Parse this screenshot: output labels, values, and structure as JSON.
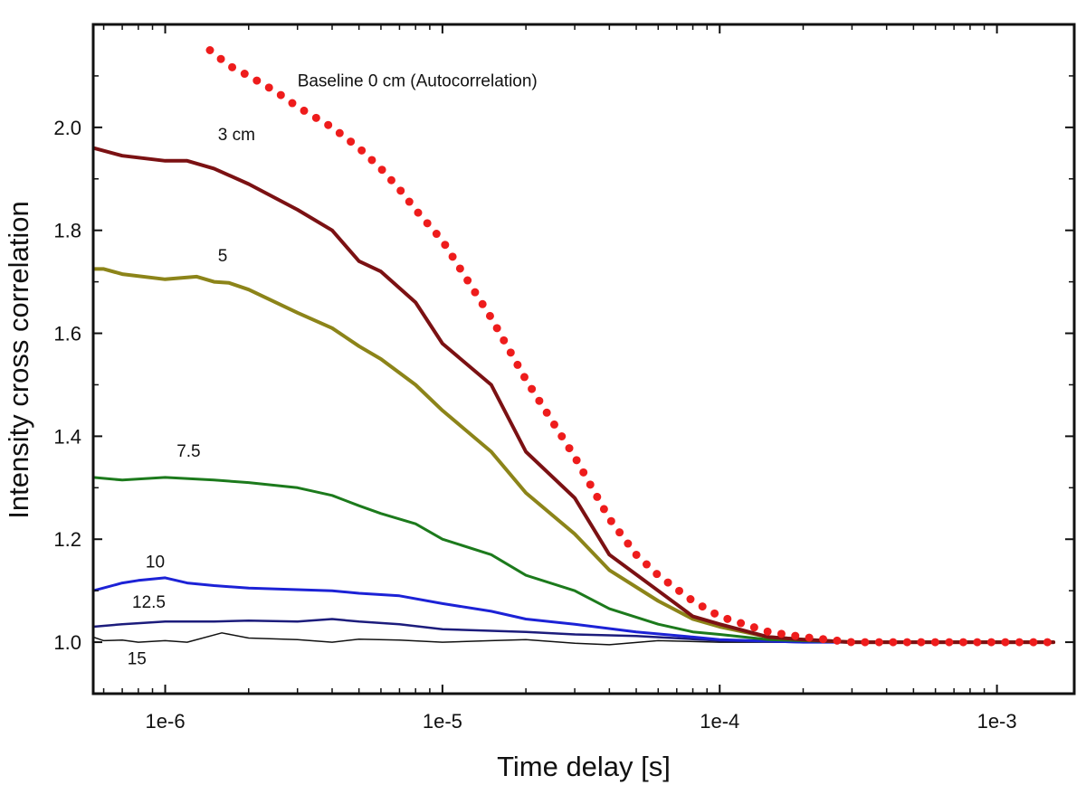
{
  "chart_data": {
    "type": "line",
    "xlabel": "Time delay [s]",
    "ylabel": "Intensity cross correlation",
    "x_scale": "log",
    "xlim": [
      5.5e-07,
      0.0019
    ],
    "ylim": [
      0.9,
      2.2
    ],
    "x_ticks": [
      {
        "value": 1e-06,
        "label": "1e-6"
      },
      {
        "value": 1e-05,
        "label": "1e-5"
      },
      {
        "value": 0.0001,
        "label": "1e-4"
      },
      {
        "value": 0.001,
        "label": "1e-3"
      }
    ],
    "y_ticks": [
      {
        "value": 1.0,
        "label": "1.0"
      },
      {
        "value": 1.2,
        "label": "1.2"
      },
      {
        "value": 1.4,
        "label": "1.4"
      },
      {
        "value": 1.6,
        "label": "1.6"
      },
      {
        "value": 1.8,
        "label": "1.8"
      },
      {
        "value": 2.0,
        "label": "2.0"
      }
    ],
    "grid": false,
    "legend": "none",
    "series": [
      {
        "name": "Baseline 0 cm (Autocorrelation)",
        "color": "#ee1c1c",
        "style": "dotted",
        "label_pos": [
          3e-06,
          2.08
        ],
        "points": [
          [
            1.45e-06,
            2.15
          ],
          [
            1.7e-06,
            2.12
          ],
          [
            2e-06,
            2.1
          ],
          [
            2.5e-06,
            2.07
          ],
          [
            3e-06,
            2.04
          ],
          [
            4e-06,
            2.0
          ],
          [
            5e-06,
            1.96
          ],
          [
            6e-06,
            1.92
          ],
          [
            7e-06,
            1.88
          ],
          [
            8e-06,
            1.84
          ],
          [
            1e-05,
            1.78
          ],
          [
            1.5e-05,
            1.63
          ],
          [
            2e-05,
            1.51
          ],
          [
            3e-05,
            1.36
          ],
          [
            4e-05,
            1.24
          ],
          [
            5e-05,
            1.17
          ],
          [
            6e-05,
            1.13
          ],
          [
            8e-05,
            1.08
          ],
          [
            0.0001,
            1.05
          ],
          [
            0.00015,
            1.02
          ],
          [
            0.0002,
            1.01
          ],
          [
            0.0003,
            1.0
          ],
          [
            0.0005,
            1.0
          ],
          [
            0.001,
            1.0
          ],
          [
            0.0016,
            1.0
          ]
        ]
      },
      {
        "name": "3 cm",
        "color": "#7b1113",
        "width": 4,
        "label_pos": [
          1.55e-06,
          1.975
        ],
        "points": [
          [
            5.5e-07,
            1.96
          ],
          [
            7e-07,
            1.945
          ],
          [
            1e-06,
            1.935
          ],
          [
            1.2e-06,
            1.935
          ],
          [
            1.5e-06,
            1.92
          ],
          [
            2e-06,
            1.89
          ],
          [
            3e-06,
            1.84
          ],
          [
            4e-06,
            1.8
          ],
          [
            5e-06,
            1.74
          ],
          [
            6e-06,
            1.72
          ],
          [
            8e-06,
            1.66
          ],
          [
            1e-05,
            1.58
          ],
          [
            1.5e-05,
            1.5
          ],
          [
            2e-05,
            1.37
          ],
          [
            3e-05,
            1.28
          ],
          [
            4e-05,
            1.17
          ],
          [
            6e-05,
            1.1
          ],
          [
            8e-05,
            1.05
          ],
          [
            0.0001,
            1.035
          ],
          [
            0.00015,
            1.01
          ],
          [
            0.0002,
            1.005
          ],
          [
            0.0003,
            1.0
          ],
          [
            0.001,
            1.0
          ],
          [
            0.0016,
            1.0
          ]
        ]
      },
      {
        "name": "5",
        "color": "#8c8419",
        "width": 4,
        "label_pos": [
          1.55e-06,
          1.74
        ],
        "points": [
          [
            5.5e-07,
            1.725
          ],
          [
            6e-07,
            1.725
          ],
          [
            7e-07,
            1.715
          ],
          [
            1e-06,
            1.705
          ],
          [
            1.3e-06,
            1.71
          ],
          [
            1.5e-06,
            1.7
          ],
          [
            1.7e-06,
            1.698
          ],
          [
            2e-06,
            1.685
          ],
          [
            3e-06,
            1.64
          ],
          [
            4e-06,
            1.61
          ],
          [
            5e-06,
            1.575
          ],
          [
            6e-06,
            1.55
          ],
          [
            8e-06,
            1.5
          ],
          [
            1e-05,
            1.45
          ],
          [
            1.5e-05,
            1.37
          ],
          [
            2e-05,
            1.29
          ],
          [
            3e-05,
            1.21
          ],
          [
            4e-05,
            1.14
          ],
          [
            6e-05,
            1.08
          ],
          [
            8e-05,
            1.045
          ],
          [
            0.0001,
            1.03
          ],
          [
            0.00015,
            1.01
          ],
          [
            0.0002,
            1.005
          ],
          [
            0.0003,
            1.0
          ],
          [
            0.001,
            1.0
          ],
          [
            0.0016,
            1.0
          ]
        ]
      },
      {
        "name": "7.5",
        "color": "#1c7a1c",
        "width": 3,
        "label_pos": [
          1.1e-06,
          1.36
        ],
        "points": [
          [
            5.5e-07,
            1.32
          ],
          [
            7e-07,
            1.315
          ],
          [
            1e-06,
            1.32
          ],
          [
            1.5e-06,
            1.315
          ],
          [
            2e-06,
            1.31
          ],
          [
            3e-06,
            1.3
          ],
          [
            4e-06,
            1.285
          ],
          [
            5e-06,
            1.265
          ],
          [
            6e-06,
            1.25
          ],
          [
            8e-06,
            1.23
          ],
          [
            1e-05,
            1.2
          ],
          [
            1.5e-05,
            1.17
          ],
          [
            2e-05,
            1.13
          ],
          [
            3e-05,
            1.1
          ],
          [
            4e-05,
            1.065
          ],
          [
            6e-05,
            1.035
          ],
          [
            8e-05,
            1.02
          ],
          [
            0.0001,
            1.015
          ],
          [
            0.00015,
            1.005
          ],
          [
            0.0003,
            1.0
          ],
          [
            0.001,
            1.0
          ],
          [
            0.0016,
            1.0
          ]
        ]
      },
      {
        "name": "10",
        "color": "#1c22d6",
        "width": 3,
        "label_pos": [
          8.5e-07,
          1.145
        ],
        "points": [
          [
            5.5e-07,
            1.1
          ],
          [
            7e-07,
            1.115
          ],
          [
            8e-07,
            1.12
          ],
          [
            1e-06,
            1.125
          ],
          [
            1.2e-06,
            1.115
          ],
          [
            1.5e-06,
            1.11
          ],
          [
            2e-06,
            1.105
          ],
          [
            3e-06,
            1.102
          ],
          [
            4e-06,
            1.1
          ],
          [
            5e-06,
            1.095
          ],
          [
            7e-06,
            1.09
          ],
          [
            1e-05,
            1.075
          ],
          [
            1.5e-05,
            1.06
          ],
          [
            2e-05,
            1.045
          ],
          [
            3e-05,
            1.035
          ],
          [
            5e-05,
            1.02
          ],
          [
            8e-05,
            1.01
          ],
          [
            0.0001,
            1.005
          ],
          [
            0.0002,
            1.0
          ],
          [
            0.001,
            1.0
          ],
          [
            0.0016,
            1.0
          ]
        ]
      },
      {
        "name": "12.5",
        "color": "#1c1c7c",
        "width": 2.5,
        "label_pos": [
          7.6e-07,
          1.067
        ],
        "points": [
          [
            5.5e-07,
            1.03
          ],
          [
            7e-07,
            1.035
          ],
          [
            1e-06,
            1.04
          ],
          [
            1.5e-06,
            1.04
          ],
          [
            2e-06,
            1.042
          ],
          [
            3e-06,
            1.04
          ],
          [
            4e-06,
            1.045
          ],
          [
            5e-06,
            1.04
          ],
          [
            7e-06,
            1.035
          ],
          [
            1e-05,
            1.025
          ],
          [
            2e-05,
            1.02
          ],
          [
            3e-05,
            1.015
          ],
          [
            5e-05,
            1.012
          ],
          [
            8e-05,
            1.006
          ],
          [
            0.0001,
            1.003
          ],
          [
            0.0002,
            1.0
          ],
          [
            0.001,
            1.0
          ],
          [
            0.0016,
            1.0
          ]
        ]
      },
      {
        "name": "15",
        "color": "#111111",
        "width": 1.5,
        "label_pos": [
          7.3e-07,
          0.957
        ],
        "points": [
          [
            5.5e-07,
            1.01
          ],
          [
            6e-07,
            1.003
          ],
          [
            7e-07,
            1.004
          ],
          [
            8e-07,
            1.0
          ],
          [
            1e-06,
            1.003
          ],
          [
            1.2e-06,
            1.0
          ],
          [
            1.6e-06,
            1.018
          ],
          [
            2e-06,
            1.008
          ],
          [
            3e-06,
            1.005
          ],
          [
            4e-06,
            1.0
          ],
          [
            5e-06,
            1.006
          ],
          [
            7e-06,
            1.004
          ],
          [
            1e-05,
            1.0
          ],
          [
            1.5e-05,
            1.003
          ],
          [
            2e-05,
            1.005
          ],
          [
            3e-05,
            0.998
          ],
          [
            4e-05,
            0.995
          ],
          [
            6e-05,
            1.003
          ],
          [
            0.0001,
            1.0
          ],
          [
            0.0003,
            1.0
          ],
          [
            0.001,
            0.998
          ],
          [
            0.0016,
            1.0
          ]
        ]
      }
    ]
  }
}
